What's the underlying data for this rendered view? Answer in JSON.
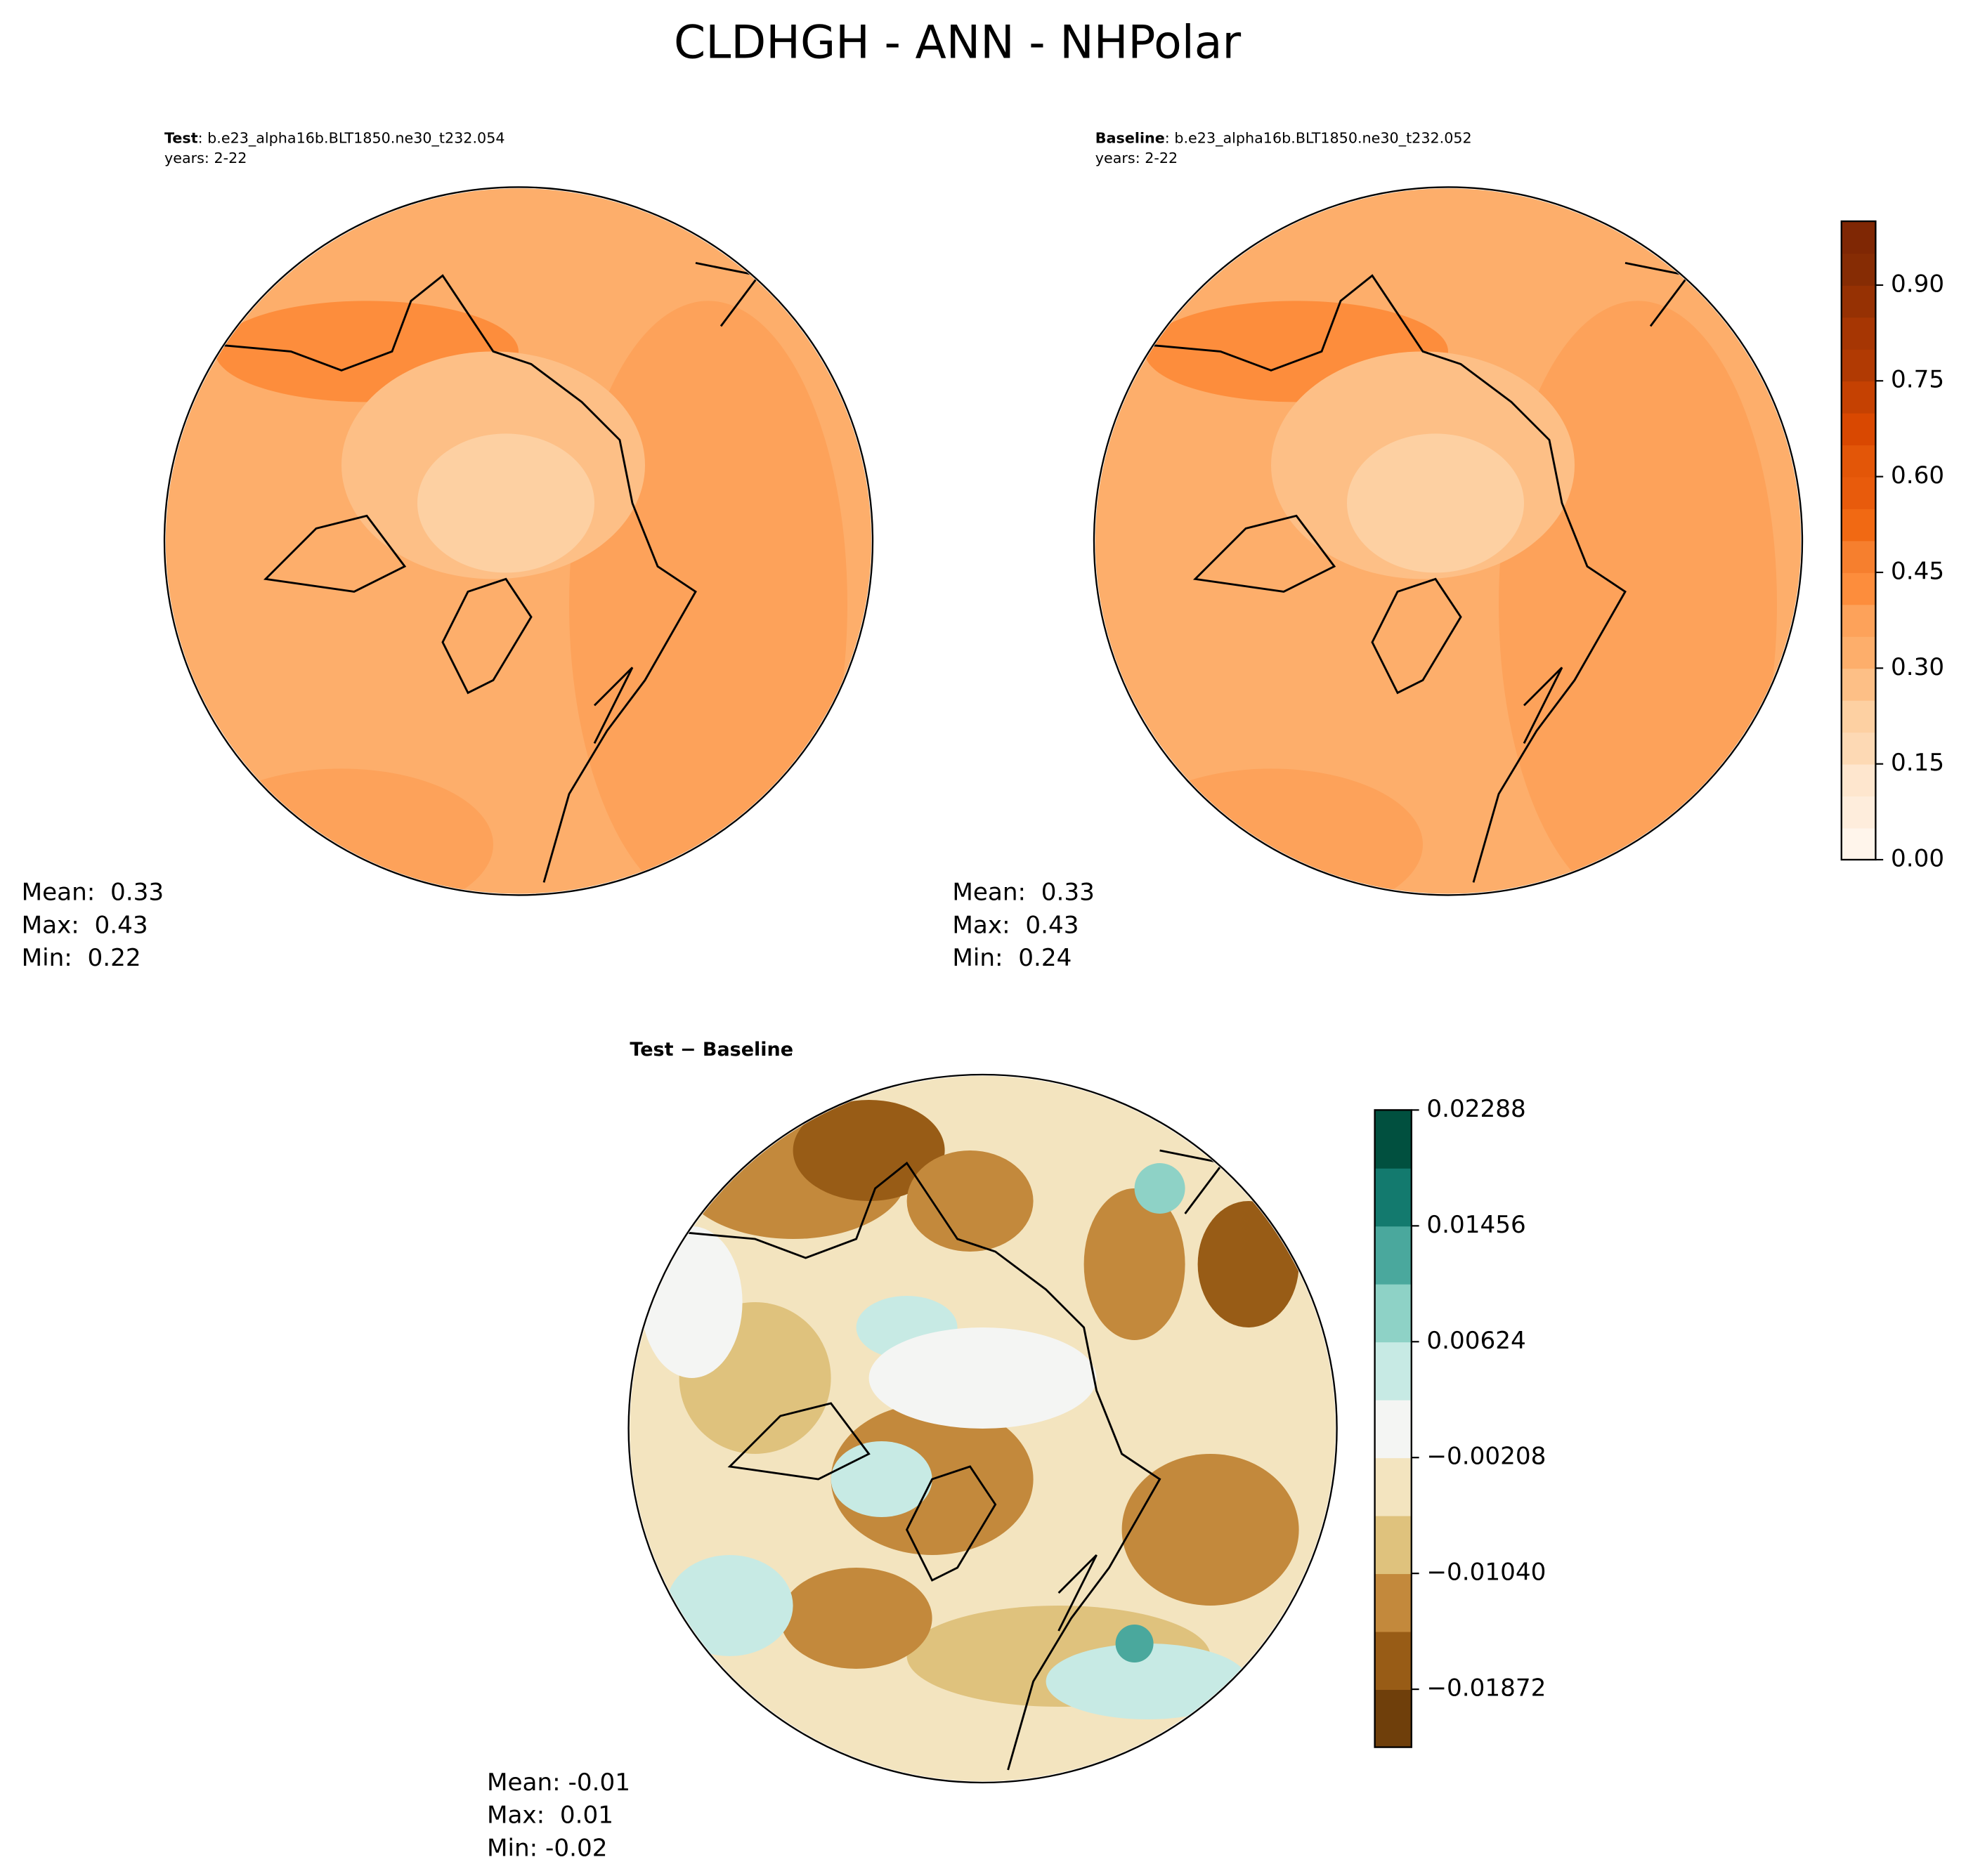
{
  "chart_data": {
    "type": "polar-map",
    "title": "CLDHGH - ANN - NHPolar",
    "panels": [
      {
        "name": "Test",
        "case": ": b.e23_alpha16b.BLT1850.ne30_t232.054",
        "years": "years: 2-22",
        "stats": [
          "Mean:  0.33",
          "Max:  0.43",
          "Min:  0.22"
        ]
      },
      {
        "name": "Baseline",
        "case": ": b.e23_alpha16b.BLT1850.ne30_t232.052",
        "years": "years: 2-22",
        "stats": [
          "Mean:  0.33",
          "Max:  0.43",
          "Min:  0.24"
        ]
      },
      {
        "name": "Test − Baseline",
        "stats": [
          "Mean: -0.01",
          "Max:  0.01",
          "Min: -0.02"
        ]
      }
    ],
    "colorbars": [
      {
        "ylim": [
          0,
          1
        ],
        "yticks": [
          {
            "value": 0,
            "label": "0.00"
          },
          0.15,
          {
            "value": 0.3,
            "label": "0.30"
          },
          0.45,
          {
            "value": 0.6,
            "label": "0.60"
          },
          0.75,
          {
            "value": 0.9,
            "label": "0.90"
          }
        ],
        "colors": [
          "#fff5eb",
          "#feeddc",
          "#fee6ce",
          "#fdd9b4",
          "#fdd0a2",
          "#fdbf86",
          "#fdae6b",
          "#fda25a",
          "#fd8d3c",
          "#f67f2e",
          "#f16913",
          "#e85b0c",
          "#e35608",
          "#d94801",
          "#c54102",
          "#b13a03",
          "#a63603",
          "#963103",
          "#862c04",
          "#7f2704"
        ]
      },
      {
        "ylim": [
          -0.02288,
          0.02288
        ],
        "yticks": [
          {
            "value": -0.01872,
            "label": "−0.01872"
          },
          {
            "value": -0.0104,
            "label": "−0.01040"
          },
          {
            "value": -0.00208,
            "label": "−0.00208"
          },
          0.00624,
          0.01456,
          0.02288
        ],
        "colors": [
          "#6f3f0b",
          "#985c16",
          "#c3893c",
          "#dfc27d",
          "#f3e4bf",
          "#f4f5f3",
          "#c7eae4",
          "#8ed2c6",
          "#4aa89d",
          "#137a6e",
          "#01503f"
        ]
      }
    ]
  }
}
